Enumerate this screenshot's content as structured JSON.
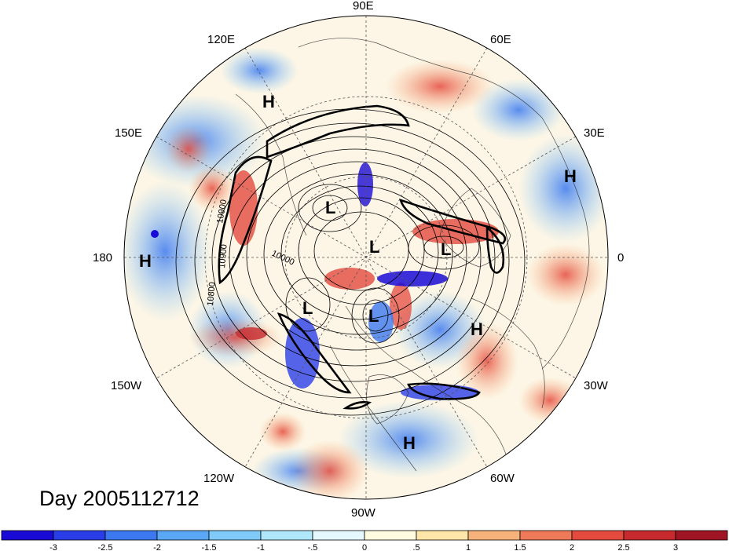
{
  "title": "Day 2005112712",
  "longitude_labels": [
    "90E",
    "60E",
    "30E",
    "0",
    "30W",
    "60W",
    "90W",
    "120W",
    "150W",
    "180",
    "150E",
    "120E"
  ],
  "pressure_centers": [
    {
      "type": "H",
      "label": "H"
    },
    {
      "type": "H",
      "label": "H"
    },
    {
      "type": "H",
      "label": "H"
    },
    {
      "type": "H",
      "label": "H"
    },
    {
      "type": "H",
      "label": "H"
    },
    {
      "type": "L",
      "label": "L"
    },
    {
      "type": "L",
      "label": "L"
    },
    {
      "type": "L",
      "label": "L"
    },
    {
      "type": "L",
      "label": "L"
    },
    {
      "type": "L",
      "label": "L"
    }
  ],
  "contour_labels": [
    "10900",
    "10900",
    "10800",
    "10000"
  ],
  "colorbar": {
    "tick_labels": [
      "-3",
      "-2.5",
      "-2",
      "-1.5",
      "-1",
      "-.5",
      "0",
      ".5",
      "1",
      "1.5",
      "2",
      "2.5",
      "3"
    ],
    "colors": [
      "#1a0ad6",
      "#2a3ee8",
      "#3c78f0",
      "#5aa8f5",
      "#7fcaf8",
      "#b0e8fb",
      "#e6f8ff",
      "#fffbe0",
      "#fde6a8",
      "#f6b27a",
      "#ef7a5a",
      "#e44a3e",
      "#c72a2e",
      "#a01524"
    ]
  }
}
